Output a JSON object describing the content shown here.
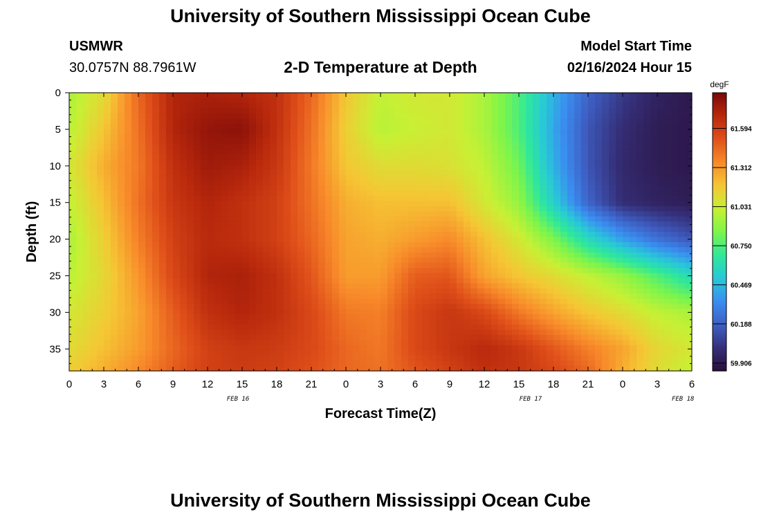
{
  "header": {
    "title": "University of Southern Mississippi Ocean Cube",
    "station": "USMWR",
    "coordinates": "30.0757N  88.7961W",
    "subtitle": "2-D Temperature at Depth",
    "model_start_label": "Model Start Time",
    "model_start_value": "02/16/2024 Hour 15"
  },
  "footer": {
    "title": "University of Southern Mississippi Ocean Cube"
  },
  "chart_data": {
    "type": "heatmap",
    "title": "2-D Temperature at Depth",
    "xlabel": "Forecast Time(Z)",
    "ylabel": "Depth (ft)",
    "x_tick_labels": [
      "0",
      "3",
      "6",
      "9",
      "12",
      "15",
      "18",
      "21",
      "0",
      "3",
      "6",
      "9",
      "12",
      "15",
      "18",
      "21",
      "0",
      "3",
      "6"
    ],
    "x_day_labels": [
      "FEB 16",
      "FEB 17",
      "FEB 18"
    ],
    "x_range_hours": [
      0,
      54
    ],
    "y_ticks": [
      0,
      5,
      10,
      15,
      20,
      25,
      30,
      35
    ],
    "ylim": [
      0,
      38
    ],
    "y_inverted": true,
    "colorbar": {
      "unit": "degF",
      "ticks": [
        59.906,
        60.188,
        60.469,
        60.75,
        61.031,
        61.312,
        61.594
      ],
      "tick_labels": [
        "59.906",
        "60.188",
        "60.469",
        "60.750",
        "61.031",
        "61.312",
        "61.594"
      ],
      "range": [
        59.85,
        61.85
      ],
      "colors": [
        "#2a0f3a",
        "#35307a",
        "#3e5fc4",
        "#3a8ef0",
        "#28c8d8",
        "#2fe89a",
        "#7ef54a",
        "#c8f034",
        "#f5c634",
        "#f88a2a",
        "#e0501a",
        "#b8280c",
        "#7a0808"
      ]
    },
    "x_hours": [
      0,
      3,
      6,
      9,
      12,
      15,
      18,
      21,
      24,
      27,
      30,
      33,
      36,
      39,
      42,
      45,
      48,
      51,
      54
    ],
    "depths_ft": [
      0,
      5,
      10,
      15,
      20,
      25,
      30,
      35,
      38
    ],
    "values_degF": [
      [
        60.95,
        61.1,
        61.45,
        61.7,
        61.72,
        61.7,
        61.65,
        61.45,
        61.18,
        61.0,
        61.05,
        61.05,
        60.95,
        60.75,
        60.45,
        60.2,
        60.05,
        59.95,
        59.9
      ],
      [
        60.98,
        61.18,
        61.42,
        61.7,
        61.78,
        61.8,
        61.65,
        61.42,
        61.15,
        60.98,
        61.02,
        61.05,
        60.95,
        60.75,
        60.42,
        60.15,
        60.0,
        59.92,
        59.9
      ],
      [
        61.05,
        61.25,
        61.4,
        61.65,
        61.75,
        61.72,
        61.62,
        61.4,
        61.18,
        61.1,
        61.1,
        61.08,
        61.0,
        60.82,
        60.45,
        60.15,
        59.98,
        59.92,
        59.9
      ],
      [
        61.0,
        61.2,
        61.42,
        61.62,
        61.7,
        61.65,
        61.58,
        61.42,
        61.25,
        61.2,
        61.2,
        61.2,
        61.05,
        60.9,
        60.55,
        60.2,
        60.0,
        59.95,
        59.92
      ],
      [
        60.95,
        61.15,
        61.38,
        61.58,
        61.68,
        61.65,
        61.58,
        61.45,
        61.28,
        61.25,
        61.3,
        61.35,
        61.2,
        61.05,
        60.85,
        60.6,
        60.4,
        60.25,
        60.15
      ],
      [
        60.98,
        61.12,
        61.32,
        61.55,
        61.7,
        61.72,
        61.65,
        61.5,
        61.3,
        61.3,
        61.48,
        61.5,
        61.28,
        61.18,
        61.1,
        61.0,
        60.9,
        60.75,
        60.6
      ],
      [
        61.05,
        61.15,
        61.28,
        61.48,
        61.65,
        61.7,
        61.65,
        61.55,
        61.4,
        61.38,
        61.55,
        61.62,
        61.55,
        61.4,
        61.28,
        61.18,
        61.1,
        61.0,
        60.95
      ],
      [
        61.1,
        61.2,
        61.3,
        61.45,
        61.58,
        61.62,
        61.6,
        61.55,
        61.45,
        61.4,
        61.55,
        61.62,
        61.68,
        61.62,
        61.5,
        61.38,
        61.28,
        61.12,
        61.05
      ],
      [
        61.15,
        61.25,
        61.35,
        61.48,
        61.58,
        61.6,
        61.58,
        61.52,
        61.45,
        61.42,
        61.5,
        61.58,
        61.65,
        61.62,
        61.55,
        61.45,
        61.25,
        61.1,
        61.0
      ]
    ]
  }
}
